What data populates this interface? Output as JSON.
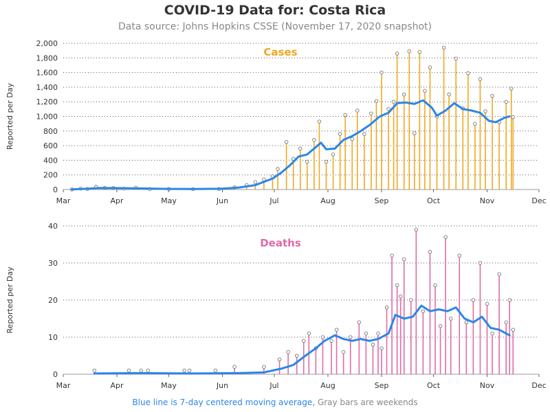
{
  "title": "COVID-19 Data for: Costa Rica",
  "subtitle": "Data source: Johns Hopkins CSSE (November 17, 2020 snapshot)",
  "footer": {
    "blue_text": "Blue line is 7-day centered moving average,",
    "gray_text": "Gray bars are weekends"
  },
  "colors": {
    "cases": "#f0a81f",
    "deaths": "#e06aa8",
    "average": "#2b86e8",
    "weekend": "#999999"
  },
  "chart_data": [
    {
      "type": "bar",
      "title": "Cases",
      "ylabel": "Reported per Day",
      "ylim": [
        0,
        2000
      ],
      "yticks": [
        0,
        200,
        400,
        600,
        800,
        1000,
        1200,
        1400,
        1600,
        1800,
        2000
      ],
      "ytick_labels": [
        "0",
        "200",
        "400",
        "600",
        "800",
        "1,000",
        "1,200",
        "1,400",
        "1,600",
        "1,800",
        "2,000"
      ],
      "x_start": "2020-03-01",
      "x_end": "2020-12-01",
      "xtick_labels": [
        "Mar",
        "Apr",
        "May",
        "Jun",
        "Jul",
        "Aug",
        "Sep",
        "Oct",
        "Nov",
        "Dec"
      ],
      "grid": "horizontal dotted",
      "series": [
        {
          "name": "daily reported",
          "values": [
            [
              "2020-03-06",
              1
            ],
            [
              "2020-03-11",
              13
            ],
            [
              "2020-03-15",
              8
            ],
            [
              "2020-03-20",
              37
            ],
            [
              "2020-03-25",
              22
            ],
            [
              "2020-03-30",
              20
            ],
            [
              "2020-04-05",
              12
            ],
            [
              "2020-04-12",
              25
            ],
            [
              "2020-04-20",
              5
            ],
            [
              "2020-05-01",
              7
            ],
            [
              "2020-05-15",
              5
            ],
            [
              "2020-05-30",
              6
            ],
            [
              "2020-06-08",
              30
            ],
            [
              "2020-06-15",
              60
            ],
            [
              "2020-06-20",
              100
            ],
            [
              "2020-06-25",
              140
            ],
            [
              "2020-06-30",
              180
            ],
            [
              "2020-07-03",
              280
            ],
            [
              "2020-07-08",
              650
            ],
            [
              "2020-07-12",
              420
            ],
            [
              "2020-07-16",
              560
            ],
            [
              "2020-07-20",
              380
            ],
            [
              "2020-07-24",
              680
            ],
            [
              "2020-07-27",
              930
            ],
            [
              "2020-07-31",
              380
            ],
            [
              "2020-08-04",
              480
            ],
            [
              "2020-08-08",
              760
            ],
            [
              "2020-08-11",
              1020
            ],
            [
              "2020-08-15",
              690
            ],
            [
              "2020-08-18",
              1080
            ],
            [
              "2020-08-22",
              760
            ],
            [
              "2020-08-26",
              1040
            ],
            [
              "2020-08-29",
              1210
            ],
            [
              "2020-09-01",
              1600
            ],
            [
              "2020-09-05",
              1100
            ],
            [
              "2020-09-08",
              1200
            ],
            [
              "2020-09-10",
              1860
            ],
            [
              "2020-09-14",
              1300
            ],
            [
              "2020-09-17",
              1890
            ],
            [
              "2020-09-20",
              770
            ],
            [
              "2020-09-23",
              1880
            ],
            [
              "2020-09-26",
              1350
            ],
            [
              "2020-09-29",
              1670
            ],
            [
              "2020-10-03",
              1000
            ],
            [
              "2020-10-07",
              1940
            ],
            [
              "2020-10-10",
              1300
            ],
            [
              "2020-10-14",
              1790
            ],
            [
              "2020-10-18",
              1110
            ],
            [
              "2020-10-21",
              1590
            ],
            [
              "2020-10-25",
              900
            ],
            [
              "2020-10-28",
              1510
            ],
            [
              "2020-10-31",
              1070
            ],
            [
              "2020-11-04",
              1280
            ],
            [
              "2020-11-08",
              920
            ],
            [
              "2020-11-12",
              1200
            ],
            [
              "2020-11-15",
              1380
            ],
            [
              "2020-11-16",
              990
            ]
          ]
        },
        {
          "name": "7-day centered moving average",
          "values": [
            [
              "2020-03-06",
              2
            ],
            [
              "2020-03-15",
              10
            ],
            [
              "2020-03-22",
              22
            ],
            [
              "2020-03-31",
              20
            ],
            [
              "2020-04-15",
              15
            ],
            [
              "2020-05-01",
              8
            ],
            [
              "2020-05-15",
              7
            ],
            [
              "2020-05-31",
              10
            ],
            [
              "2020-06-10",
              25
            ],
            [
              "2020-06-20",
              60
            ],
            [
              "2020-06-30",
              150
            ],
            [
              "2020-07-05",
              230
            ],
            [
              "2020-07-10",
              330
            ],
            [
              "2020-07-15",
              450
            ],
            [
              "2020-07-20",
              480
            ],
            [
              "2020-07-25",
              580
            ],
            [
              "2020-07-28",
              640
            ],
            [
              "2020-07-31",
              550
            ],
            [
              "2020-08-05",
              560
            ],
            [
              "2020-08-10",
              680
            ],
            [
              "2020-08-15",
              730
            ],
            [
              "2020-08-20",
              800
            ],
            [
              "2020-08-25",
              880
            ],
            [
              "2020-08-31",
              1000
            ],
            [
              "2020-09-05",
              1050
            ],
            [
              "2020-09-10",
              1180
            ],
            [
              "2020-09-15",
              1190
            ],
            [
              "2020-09-20",
              1170
            ],
            [
              "2020-09-25",
              1220
            ],
            [
              "2020-09-30",
              1120
            ],
            [
              "2020-10-03",
              1010
            ],
            [
              "2020-10-08",
              1080
            ],
            [
              "2020-10-13",
              1180
            ],
            [
              "2020-10-18",
              1100
            ],
            [
              "2020-10-23",
              1080
            ],
            [
              "2020-10-28",
              1050
            ],
            [
              "2020-11-02",
              940
            ],
            [
              "2020-11-06",
              920
            ],
            [
              "2020-11-11",
              980
            ],
            [
              "2020-11-14",
              1000
            ]
          ]
        }
      ]
    },
    {
      "type": "bar",
      "title": "Deaths",
      "ylabel": "Reported per Day",
      "ylim": [
        0,
        40
      ],
      "yticks": [
        0,
        10,
        20,
        30,
        40
      ],
      "ytick_labels": [
        "0",
        "10",
        "20",
        "30",
        "40"
      ],
      "x_start": "2020-03-01",
      "x_end": "2020-12-01",
      "xtick_labels": [
        "Mar",
        "Apr",
        "May",
        "Jun",
        "Jul",
        "Aug",
        "Sep",
        "Oct",
        "Nov",
        "Dec"
      ],
      "grid": "horizontal dotted",
      "series": [
        {
          "name": "daily reported",
          "values": [
            [
              "2020-03-19",
              1
            ],
            [
              "2020-04-08",
              1
            ],
            [
              "2020-04-15",
              1
            ],
            [
              "2020-04-19",
              1
            ],
            [
              "2020-05-10",
              1
            ],
            [
              "2020-05-13",
              1
            ],
            [
              "2020-05-28",
              1
            ],
            [
              "2020-06-08",
              2
            ],
            [
              "2020-06-25",
              2
            ],
            [
              "2020-07-04",
              4
            ],
            [
              "2020-07-09",
              6
            ],
            [
              "2020-07-14",
              5
            ],
            [
              "2020-07-18",
              9
            ],
            [
              "2020-07-21",
              11
            ],
            [
              "2020-07-25",
              7
            ],
            [
              "2020-07-29",
              10
            ],
            [
              "2020-08-03",
              9
            ],
            [
              "2020-08-06",
              12
            ],
            [
              "2020-08-10",
              6
            ],
            [
              "2020-08-14",
              10
            ],
            [
              "2020-08-19",
              14
            ],
            [
              "2020-08-23",
              11
            ],
            [
              "2020-08-27",
              8
            ],
            [
              "2020-08-30",
              11
            ],
            [
              "2020-09-01",
              7
            ],
            [
              "2020-09-04",
              18
            ],
            [
              "2020-09-07",
              32
            ],
            [
              "2020-09-10",
              24
            ],
            [
              "2020-09-12",
              21
            ],
            [
              "2020-09-14",
              31
            ],
            [
              "2020-09-18",
              20
            ],
            [
              "2020-09-21",
              39
            ],
            [
              "2020-09-25",
              17
            ],
            [
              "2020-09-29",
              33
            ],
            [
              "2020-10-02",
              24
            ],
            [
              "2020-10-05",
              13
            ],
            [
              "2020-10-08",
              37
            ],
            [
              "2020-10-11",
              15
            ],
            [
              "2020-10-16",
              32
            ],
            [
              "2020-10-20",
              14
            ],
            [
              "2020-10-24",
              20
            ],
            [
              "2020-10-28",
              30
            ],
            [
              "2020-11-01",
              19
            ],
            [
              "2020-11-04",
              11
            ],
            [
              "2020-11-08",
              27
            ],
            [
              "2020-11-12",
              14
            ],
            [
              "2020-11-14",
              20
            ],
            [
              "2020-11-16",
              12
            ]
          ]
        },
        {
          "name": "7-day centered moving average",
          "values": [
            [
              "2020-03-19",
              0.2
            ],
            [
              "2020-04-15",
              0.3
            ],
            [
              "2020-05-15",
              0.2
            ],
            [
              "2020-06-10",
              0.3
            ],
            [
              "2020-06-25",
              0.5
            ],
            [
              "2020-07-05",
              1.5
            ],
            [
              "2020-07-12",
              2.5
            ],
            [
              "2020-07-19",
              5
            ],
            [
              "2020-07-25",
              7
            ],
            [
              "2020-07-30",
              9
            ],
            [
              "2020-08-05",
              10.5
            ],
            [
              "2020-08-10",
              9.5
            ],
            [
              "2020-08-15",
              9
            ],
            [
              "2020-08-20",
              9.5
            ],
            [
              "2020-08-25",
              9
            ],
            [
              "2020-08-30",
              9.5
            ],
            [
              "2020-09-05",
              11
            ],
            [
              "2020-09-09",
              16
            ],
            [
              "2020-09-14",
              15
            ],
            [
              "2020-09-19",
              15.5
            ],
            [
              "2020-09-24",
              18.5
            ],
            [
              "2020-09-29",
              17
            ],
            [
              "2020-10-04",
              17.5
            ],
            [
              "2020-10-09",
              17
            ],
            [
              "2020-10-14",
              18
            ],
            [
              "2020-10-19",
              15
            ],
            [
              "2020-10-24",
              14
            ],
            [
              "2020-10-29",
              15.5
            ],
            [
              "2020-11-03",
              12.5
            ],
            [
              "2020-11-08",
              12
            ],
            [
              "2020-11-14",
              10.5
            ]
          ]
        }
      ]
    }
  ]
}
